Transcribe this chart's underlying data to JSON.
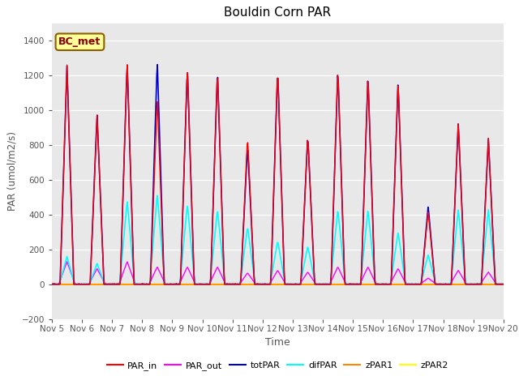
{
  "title": "Bouldin Corn PAR",
  "xlabel": "Time",
  "ylabel": "PAR (umol/m2/s)",
  "ylim": [
    -200,
    1500
  ],
  "yticks": [
    -200,
    0,
    200,
    400,
    600,
    800,
    1000,
    1200,
    1400
  ],
  "background_color": "#e8e8e8",
  "legend_label_box": "BC_met",
  "colors": {
    "PAR_in": "#ff0000",
    "PAR_out": "#ff00ff",
    "totPAR": "#0000cc",
    "difPAR": "#00ffff",
    "zPAR1": "#ff8800",
    "zPAR2": "#ffff00"
  },
  "linewidths": {
    "PAR_in": 1.0,
    "PAR_out": 1.0,
    "totPAR": 1.2,
    "difPAR": 1.2,
    "zPAR1": 1.2,
    "zPAR2": 1.5
  },
  "xtick_positions": [
    0,
    24,
    48,
    72,
    96,
    120,
    144,
    168,
    192,
    216,
    240,
    264,
    288,
    312,
    336,
    360
  ],
  "xtick_labels": [
    "Nov 5",
    "Nov 6",
    "Nov 7",
    "Nov 8",
    "Nov 9",
    "Nov 10",
    "Nov 11",
    "Nov 12",
    "Nov 13",
    "Nov 14",
    "Nov 15",
    "Nov 16",
    "Nov 17",
    "Nov 18",
    "Nov 19",
    "Nov 20"
  ],
  "n_days": 15,
  "day_peaks_tot": [
    1260,
    980,
    1280,
    1290,
    1250,
    1230,
    800,
    1240,
    860,
    1240,
    1200,
    1170,
    450,
    930,
    840
  ],
  "day_peaks_in": [
    1260,
    980,
    1280,
    1070,
    1250,
    1230,
    850,
    1240,
    860,
    1240,
    1200,
    1165,
    420,
    930,
    840
  ],
  "day_peaks_dif": [
    160,
    120,
    480,
    520,
    460,
    430,
    330,
    250,
    220,
    430,
    430,
    300,
    170,
    430,
    430
  ],
  "day_peaks_out": [
    130,
    90,
    130,
    100,
    100,
    100,
    65,
    80,
    70,
    100,
    100,
    90,
    35,
    80,
    70
  ],
  "daylight_start": 6.5,
  "daylight_end": 17.5,
  "peak_hour": 12.0
}
